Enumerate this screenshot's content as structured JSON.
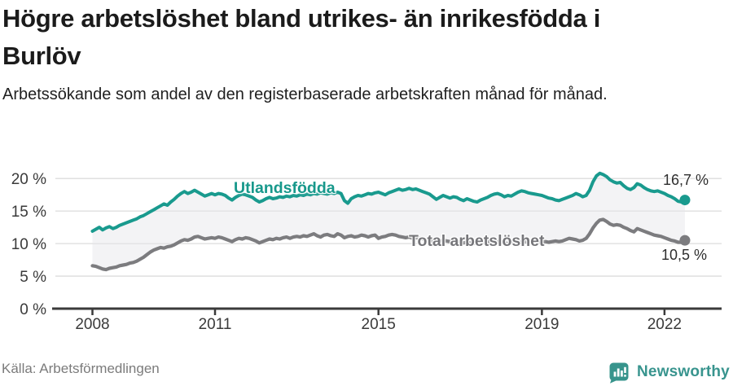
{
  "header": {
    "title": "Högre arbetslöshet bland utrikes- än inrikesfödda i Burlöv",
    "subtitle": "Arbetssökande som andel av den registerbaserade arbetskraften månad för månad."
  },
  "footer": {
    "source": "Källa: Arbetsförmedlingen",
    "brand": "Newsworthy"
  },
  "chart_data": {
    "type": "line",
    "x_start": "2008-01",
    "x_end": "2022-07",
    "x_frequency": "monthly",
    "x_tick_years": [
      2008,
      2011,
      2015,
      2019,
      2022
    ],
    "x_tick_labels": [
      "2008",
      "2011",
      "2015",
      "2019",
      "2022"
    ],
    "y_tick_values": [
      0,
      5,
      10,
      15,
      20
    ],
    "y_tick_labels": [
      "0 %",
      "5 %",
      "10 %",
      "15 %",
      "20 %"
    ],
    "ylim": [
      0,
      22
    ],
    "grid": true,
    "legend_position": "inline-labels",
    "band_fill_between_series": true,
    "colors": {
      "utlandsfodda": "#199a8e",
      "total": "#7c7c7f",
      "band": "rgba(228,228,232,0.45)",
      "gridline": "#dcdcdc",
      "axis": "#3a3a3a"
    },
    "series": [
      {
        "name": "Utlandsfödda",
        "color": "#199a8e",
        "end_label": "16,7 %",
        "end_value": 16.7,
        "values": [
          11.9,
          12.2,
          12.5,
          12.1,
          12.4,
          12.6,
          12.3,
          12.5,
          12.8,
          13.0,
          13.2,
          13.4,
          13.6,
          13.8,
          14.1,
          14.3,
          14.6,
          14.9,
          15.2,
          15.5,
          15.8,
          16.1,
          15.9,
          16.4,
          16.8,
          17.3,
          17.7,
          18.0,
          17.7,
          17.9,
          18.2,
          17.9,
          17.6,
          17.3,
          17.5,
          17.7,
          17.5,
          17.7,
          17.6,
          17.4,
          17.0,
          16.7,
          17.1,
          17.4,
          17.6,
          17.5,
          17.3,
          17.1,
          16.7,
          16.4,
          16.6,
          16.9,
          17.1,
          16.9,
          17.0,
          17.2,
          17.1,
          17.3,
          17.2,
          17.4,
          17.3,
          17.5,
          17.4,
          17.6,
          17.5,
          17.7,
          17.6,
          17.8,
          17.7,
          17.6,
          17.8,
          17.7,
          17.9,
          17.7,
          16.6,
          16.2,
          16.9,
          17.2,
          17.4,
          17.3,
          17.5,
          17.7,
          17.6,
          17.8,
          17.9,
          17.7,
          17.5,
          17.8,
          18.0,
          18.2,
          18.4,
          18.2,
          18.3,
          18.5,
          18.3,
          18.4,
          18.2,
          18.0,
          17.8,
          17.6,
          17.2,
          16.8,
          17.1,
          17.4,
          17.2,
          17.0,
          17.2,
          17.1,
          16.8,
          16.6,
          16.9,
          16.7,
          16.5,
          16.4,
          16.7,
          16.9,
          17.1,
          17.4,
          17.6,
          17.7,
          17.5,
          17.2,
          17.4,
          17.3,
          17.6,
          17.9,
          18.1,
          18.0,
          17.8,
          17.7,
          17.6,
          17.5,
          17.4,
          17.2,
          17.0,
          16.9,
          16.7,
          16.6,
          16.8,
          17.0,
          17.2,
          17.4,
          17.7,
          17.5,
          17.2,
          17.4,
          18.2,
          19.5,
          20.4,
          20.8,
          20.6,
          20.3,
          19.8,
          19.5,
          19.3,
          19.4,
          18.9,
          18.5,
          18.3,
          18.6,
          19.2,
          19.0,
          18.6,
          18.3,
          18.1,
          18.0,
          18.1,
          17.9,
          17.7,
          17.4,
          17.2,
          16.9,
          16.5,
          16.4,
          16.7
        ]
      },
      {
        "name": "Total arbetslöshet",
        "color": "#7c7c7f",
        "end_label": "10,5 %",
        "end_value": 10.5,
        "values": [
          6.6,
          6.5,
          6.3,
          6.1,
          6.0,
          6.2,
          6.3,
          6.4,
          6.6,
          6.7,
          6.8,
          7.0,
          7.1,
          7.3,
          7.6,
          7.9,
          8.3,
          8.7,
          9.0,
          9.2,
          9.4,
          9.3,
          9.5,
          9.6,
          9.8,
          10.1,
          10.4,
          10.6,
          10.5,
          10.7,
          11.0,
          11.1,
          10.9,
          10.7,
          10.8,
          10.9,
          10.8,
          11.0,
          10.9,
          10.7,
          10.5,
          10.3,
          10.6,
          10.8,
          10.7,
          10.9,
          10.8,
          10.6,
          10.4,
          10.1,
          10.3,
          10.5,
          10.7,
          10.6,
          10.8,
          10.7,
          10.9,
          11.0,
          10.8,
          11.0,
          11.1,
          11.0,
          11.2,
          11.1,
          11.3,
          11.5,
          11.2,
          11.0,
          11.3,
          11.4,
          11.2,
          11.1,
          11.5,
          11.3,
          10.9,
          11.1,
          11.2,
          11.0,
          11.1,
          11.3,
          11.2,
          11.0,
          11.2,
          11.3,
          10.8,
          11.0,
          11.1,
          11.3,
          11.4,
          11.3,
          11.1,
          11.0,
          10.9,
          11.0,
          10.8,
          10.9,
          10.8,
          10.7,
          10.6,
          10.5,
          10.4,
          10.3,
          10.4,
          10.5,
          10.4,
          10.3,
          10.2,
          10.3,
          10.2,
          10.1,
          10.2,
          10.1,
          10.0,
          10.1,
          10.2,
          10.3,
          10.2,
          10.3,
          10.4,
          10.3,
          10.2,
          10.1,
          10.0,
          10.1,
          10.2,
          10.1,
          10.2,
          10.3,
          10.2,
          10.1,
          10.2,
          10.3,
          10.2,
          10.3,
          10.2,
          10.3,
          10.4,
          10.3,
          10.4,
          10.6,
          10.8,
          10.7,
          10.6,
          10.4,
          10.5,
          10.8,
          11.5,
          12.4,
          13.1,
          13.6,
          13.7,
          13.4,
          13.0,
          12.8,
          12.9,
          12.8,
          12.5,
          12.3,
          12.0,
          11.8,
          12.3,
          12.1,
          11.9,
          11.7,
          11.5,
          11.3,
          11.2,
          11.1,
          10.9,
          10.7,
          10.5,
          10.4,
          10.2,
          10.2,
          10.5
        ]
      }
    ]
  }
}
